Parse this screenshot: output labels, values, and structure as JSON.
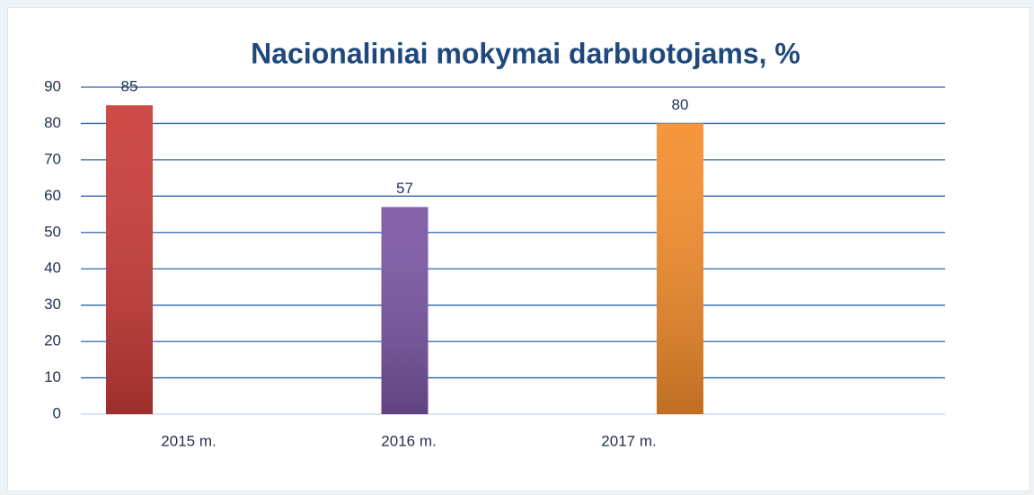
{
  "chart_data": {
    "type": "bar",
    "title": "Nacionaliniai mokymai darbuotojams, %",
    "categories": [
      "2015 m.",
      "2016 m.",
      "2017 m."
    ],
    "values": [
      85,
      57,
      80
    ],
    "colors": [
      "#c93b38",
      "#7a55a3",
      "#f58d2c"
    ],
    "ylim": [
      0,
      90
    ],
    "yticks": [
      0,
      10,
      20,
      30,
      40,
      50,
      60,
      70,
      80,
      90
    ],
    "grid": true
  }
}
